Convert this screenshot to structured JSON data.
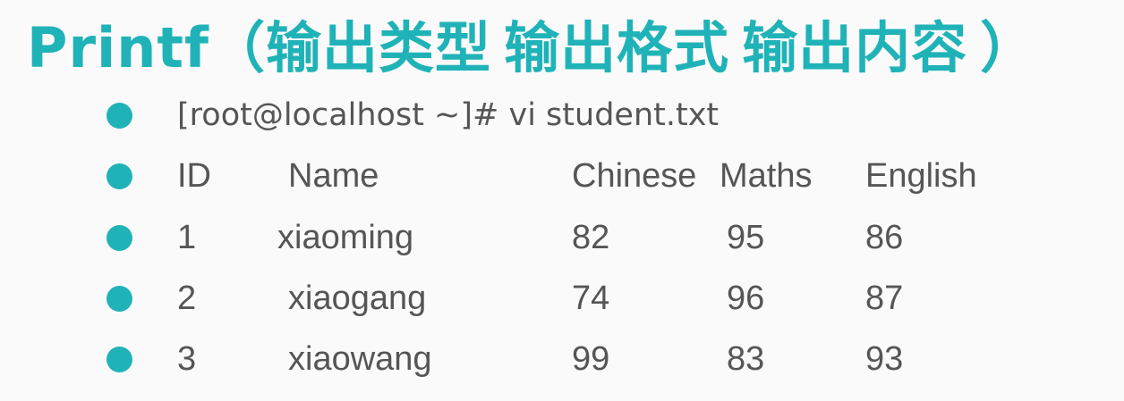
{
  "slide": {
    "title": {
      "prefix": "Printf",
      "open_paren": "（",
      "part1": "输出类型",
      "part2": "输出格式",
      "part3": "输出内容",
      "close_paren": "）"
    },
    "command": "[root@localhost ~]# vi student.txt",
    "table": {
      "columns": [
        "ID",
        "Name",
        "Chinese",
        "Maths",
        "English"
      ],
      "rows": [
        [
          "1",
          "xiaoming",
          "82",
          "95",
          "86"
        ],
        [
          "2",
          "xiaogang",
          "74",
          "96",
          "87"
        ],
        [
          "3",
          "xiaowang",
          "99",
          "83",
          "93"
        ]
      ]
    },
    "accent_color": "#1fb3b8",
    "text_color": "#555555"
  }
}
